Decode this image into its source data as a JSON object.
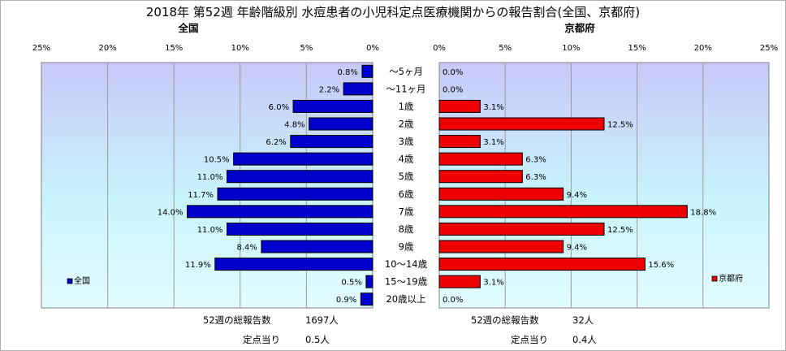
{
  "title": "2018年 第52週 年齢階級別 水痘患者の小児科定点医療機関からの報告割合(全国、京都府)",
  "chart_data": {
    "type": "bar",
    "orientation": "horizontal",
    "categories": [
      "～5ヶ月",
      "～11ヶ月",
      "1歳",
      "2歳",
      "3歳",
      "4歳",
      "5歳",
      "6歳",
      "7歳",
      "8歳",
      "9歳",
      "10～14歳",
      "15～19歳",
      "20歳以上"
    ],
    "xlim": [
      0,
      25
    ],
    "ticks": [
      "0%",
      "5%",
      "10%",
      "15%",
      "20%",
      "25%"
    ],
    "series": [
      {
        "name": "全国",
        "subtitle": "全国",
        "color": "#0000cc",
        "values": [
          0.8,
          2.2,
          6.0,
          4.8,
          6.2,
          10.5,
          11.0,
          11.7,
          14.0,
          11.0,
          8.4,
          11.9,
          0.5,
          0.9
        ],
        "labels": [
          "0.8%",
          "2.2%",
          "6.0%",
          "4.8%",
          "6.2%",
          "10.5%",
          "11.0%",
          "11.7%",
          "14.0%",
          "11.0%",
          "8.4%",
          "11.9%",
          "0.5%",
          "0.9%"
        ]
      },
      {
        "name": "京都府",
        "subtitle": "京都府",
        "color": "#ee0000",
        "values": [
          0.0,
          0.0,
          3.1,
          12.5,
          3.1,
          6.3,
          6.3,
          9.4,
          18.8,
          12.5,
          9.4,
          15.6,
          3.1,
          0.0
        ],
        "labels": [
          "0.0%",
          "0.0%",
          "3.1%",
          "12.5%",
          "3.1%",
          "6.3%",
          "6.3%",
          "9.4%",
          "18.8%",
          "12.5%",
          "9.4%",
          "15.6%",
          "3.1%",
          "0.0%"
        ]
      }
    ]
  },
  "footer": {
    "national": {
      "total_label": "52週の総報告数",
      "total_value": "1697人",
      "per_label": "定点当り",
      "per_value": "0.5人"
    },
    "kyoto": {
      "total_label": "52週の総報告数",
      "total_value": "32人",
      "per_label": "定点当り",
      "per_value": "0.4人"
    }
  }
}
